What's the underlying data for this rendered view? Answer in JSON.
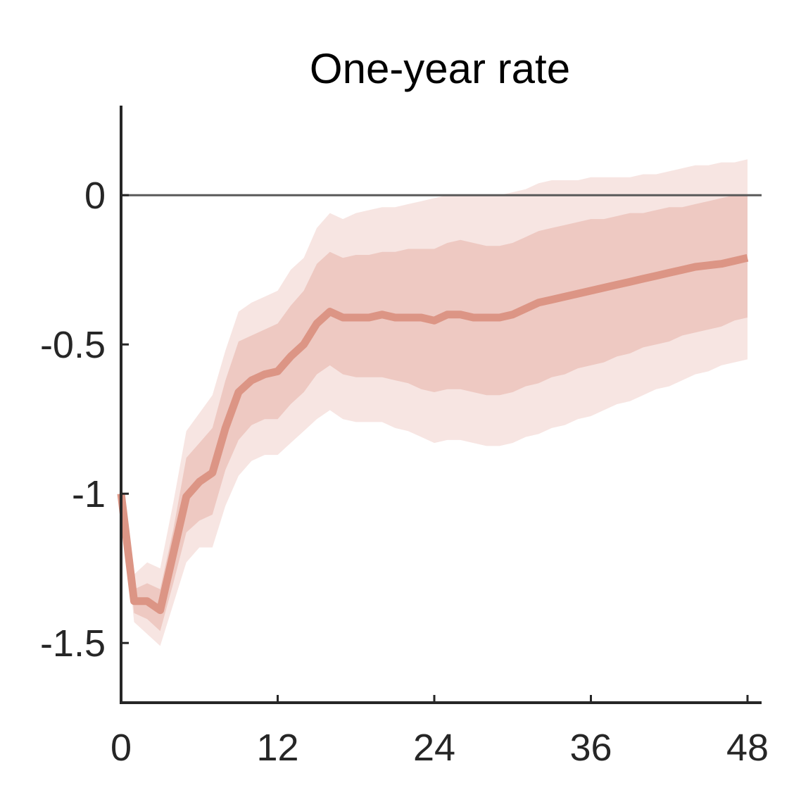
{
  "chart_data": {
    "type": "line",
    "title": "One-year rate",
    "xlabel": "",
    "ylabel": "",
    "xlim": [
      0,
      48
    ],
    "ylim": [
      -1.7,
      0.3
    ],
    "xticks": [
      0,
      12,
      24,
      36,
      48
    ],
    "xtick_labels": [
      "0",
      "12",
      "24",
      "36",
      "48"
    ],
    "yticks": [
      0,
      -0.5,
      -1,
      -1.5
    ],
    "ytick_labels": [
      "0",
      "-0.5",
      "-1",
      "-1.5"
    ],
    "zero_line": 0,
    "grid": false,
    "legend": "none",
    "colors": {
      "line": "#dc9585",
      "inner_band": "#eec9c2",
      "outer_band": "#f7e5e2",
      "axis": "#262626",
      "zero_line": "#595959"
    },
    "x": [
      0,
      1,
      2,
      3,
      4,
      5,
      6,
      7,
      8,
      9,
      10,
      11,
      12,
      13,
      14,
      15,
      16,
      17,
      18,
      19,
      20,
      21,
      22,
      23,
      24,
      25,
      26,
      27,
      28,
      29,
      30,
      31,
      32,
      33,
      34,
      35,
      36,
      37,
      38,
      39,
      40,
      41,
      42,
      43,
      44,
      45,
      46,
      47,
      48
    ],
    "series": [
      {
        "values": [
          -1.0,
          -1.36,
          -1.36,
          -1.39,
          -1.2,
          -1.01,
          -0.96,
          -0.93,
          -0.78,
          -0.66,
          -0.62,
          -0.6,
          -0.59,
          -0.54,
          -0.5,
          -0.43,
          -0.39,
          -0.41,
          -0.41,
          -0.41,
          -0.4,
          -0.41,
          -0.41,
          -0.41,
          -0.42,
          -0.4,
          -0.4,
          -0.41,
          -0.41,
          -0.41,
          -0.4,
          -0.38,
          -0.36,
          -0.35,
          -0.34,
          -0.33,
          -0.32,
          -0.31,
          -0.3,
          -0.29,
          -0.28,
          -0.27,
          -0.26,
          -0.25,
          -0.24,
          -0.235,
          -0.23,
          -0.22,
          -0.21
        ]
      }
    ],
    "bands": [
      {
        "level": "outer",
        "upper": [
          -1.0,
          -1.27,
          -1.23,
          -1.25,
          -1.03,
          -0.79,
          -0.73,
          -0.67,
          -0.52,
          -0.39,
          -0.36,
          -0.34,
          -0.32,
          -0.25,
          -0.21,
          -0.11,
          -0.06,
          -0.08,
          -0.06,
          -0.05,
          -0.04,
          -0.04,
          -0.03,
          -0.02,
          -0.01,
          0.0,
          0.0,
          0.0,
          0.0,
          0.0,
          0.01,
          0.02,
          0.04,
          0.05,
          0.05,
          0.05,
          0.06,
          0.06,
          0.06,
          0.06,
          0.07,
          0.07,
          0.08,
          0.09,
          0.1,
          0.1,
          0.11,
          0.11,
          0.12
        ],
        "lower": [
          -1.0,
          -1.43,
          -1.47,
          -1.51,
          -1.37,
          -1.23,
          -1.18,
          -1.18,
          -1.04,
          -0.94,
          -0.89,
          -0.87,
          -0.87,
          -0.83,
          -0.79,
          -0.75,
          -0.72,
          -0.75,
          -0.76,
          -0.76,
          -0.76,
          -0.78,
          -0.79,
          -0.81,
          -0.83,
          -0.82,
          -0.82,
          -0.83,
          -0.84,
          -0.84,
          -0.83,
          -0.81,
          -0.8,
          -0.78,
          -0.77,
          -0.75,
          -0.74,
          -0.72,
          -0.7,
          -0.69,
          -0.67,
          -0.65,
          -0.64,
          -0.62,
          -0.6,
          -0.59,
          -0.57,
          -0.56,
          -0.55
        ]
      },
      {
        "level": "inner",
        "upper": [
          -1.0,
          -1.32,
          -1.3,
          -1.32,
          -1.12,
          -0.88,
          -0.83,
          -0.78,
          -0.62,
          -0.49,
          -0.47,
          -0.45,
          -0.43,
          -0.37,
          -0.32,
          -0.23,
          -0.19,
          -0.21,
          -0.2,
          -0.2,
          -0.19,
          -0.19,
          -0.18,
          -0.18,
          -0.18,
          -0.16,
          -0.15,
          -0.16,
          -0.17,
          -0.17,
          -0.16,
          -0.14,
          -0.12,
          -0.11,
          -0.1,
          -0.09,
          -0.08,
          -0.08,
          -0.07,
          -0.06,
          -0.06,
          -0.05,
          -0.04,
          -0.04,
          -0.03,
          -0.02,
          -0.01,
          0.0,
          0.0
        ],
        "lower": [
          -1.0,
          -1.4,
          -1.42,
          -1.46,
          -1.3,
          -1.13,
          -1.09,
          -1.07,
          -0.92,
          -0.82,
          -0.77,
          -0.75,
          -0.75,
          -0.7,
          -0.66,
          -0.6,
          -0.57,
          -0.6,
          -0.61,
          -0.61,
          -0.61,
          -0.62,
          -0.63,
          -0.65,
          -0.66,
          -0.65,
          -0.65,
          -0.66,
          -0.67,
          -0.67,
          -0.66,
          -0.64,
          -0.63,
          -0.61,
          -0.6,
          -0.58,
          -0.57,
          -0.56,
          -0.54,
          -0.53,
          -0.51,
          -0.5,
          -0.49,
          -0.47,
          -0.46,
          -0.45,
          -0.44,
          -0.42,
          -0.41
        ]
      }
    ]
  }
}
